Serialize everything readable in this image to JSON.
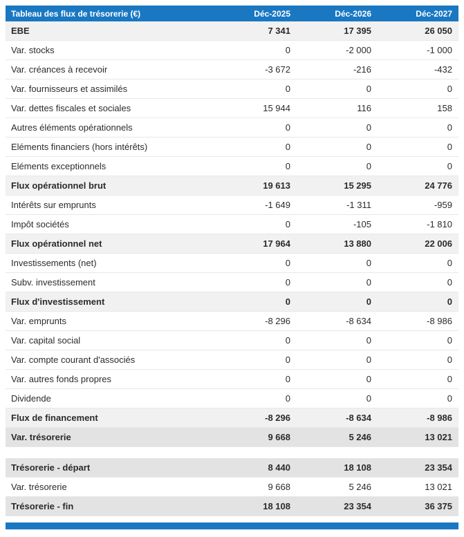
{
  "chart_data": {
    "type": "table",
    "title": "Tableau des flux de trésorerie (€)",
    "columns": [
      "Déc-2025",
      "Déc-2026",
      "Déc-2027"
    ],
    "rows": [
      {
        "label": "EBE",
        "values": [
          "7 341",
          "17 395",
          "26 050"
        ],
        "style": "subtotal"
      },
      {
        "label": "Var. stocks",
        "values": [
          "0",
          "-2 000",
          "-1 000"
        ],
        "style": "normal"
      },
      {
        "label": "Var. créances à recevoir",
        "values": [
          "-3 672",
          "-216",
          "-432"
        ],
        "style": "normal"
      },
      {
        "label": "Var. fournisseurs et assimilés",
        "values": [
          "0",
          "0",
          "0"
        ],
        "style": "normal"
      },
      {
        "label": "Var. dettes fiscales et sociales",
        "values": [
          "15 944",
          "116",
          "158"
        ],
        "style": "normal"
      },
      {
        "label": "Autres éléments opérationnels",
        "values": [
          "0",
          "0",
          "0"
        ],
        "style": "normal"
      },
      {
        "label": "Eléments financiers (hors intérêts)",
        "values": [
          "0",
          "0",
          "0"
        ],
        "style": "normal"
      },
      {
        "label": "Eléments exceptionnels",
        "values": [
          "0",
          "0",
          "0"
        ],
        "style": "normal"
      },
      {
        "label": "Flux opérationnel brut",
        "values": [
          "19 613",
          "15 295",
          "24 776"
        ],
        "style": "subtotal"
      },
      {
        "label": "Intérêts sur emprunts",
        "values": [
          "-1 649",
          "-1 311",
          "-959"
        ],
        "style": "normal"
      },
      {
        "label": "Impôt sociétés",
        "values": [
          "0",
          "-105",
          "-1 810"
        ],
        "style": "normal"
      },
      {
        "label": "Flux opérationnel net",
        "values": [
          "17 964",
          "13 880",
          "22 006"
        ],
        "style": "subtotal"
      },
      {
        "label": "Investissements (net)",
        "values": [
          "0",
          "0",
          "0"
        ],
        "style": "normal"
      },
      {
        "label": "Subv. investissement",
        "values": [
          "0",
          "0",
          "0"
        ],
        "style": "normal"
      },
      {
        "label": "Flux d'investissement",
        "values": [
          "0",
          "0",
          "0"
        ],
        "style": "subtotal"
      },
      {
        "label": "Var. emprunts",
        "values": [
          "-8 296",
          "-8 634",
          "-8 986"
        ],
        "style": "normal"
      },
      {
        "label": "Var. capital social",
        "values": [
          "0",
          "0",
          "0"
        ],
        "style": "normal"
      },
      {
        "label": "Var. compte courant d'associés",
        "values": [
          "0",
          "0",
          "0"
        ],
        "style": "normal"
      },
      {
        "label": "Var. autres fonds propres",
        "values": [
          "0",
          "0",
          "0"
        ],
        "style": "normal"
      },
      {
        "label": "Dividende",
        "values": [
          "0",
          "0",
          "0"
        ],
        "style": "normal"
      },
      {
        "label": "Flux de financement",
        "values": [
          "-8 296",
          "-8 634",
          "-8 986"
        ],
        "style": "subtotal"
      },
      {
        "label": "Var. trésorerie",
        "values": [
          "9 668",
          "5 246",
          "13 021"
        ],
        "style": "total"
      },
      {
        "style": "spacer"
      },
      {
        "label": "Trésorerie - départ",
        "values": [
          "8 440",
          "18 108",
          "23 354"
        ],
        "style": "total"
      },
      {
        "label": "Var. trésorerie",
        "values": [
          "9 668",
          "5 246",
          "13 021"
        ],
        "style": "normal"
      },
      {
        "label": "Trésorerie - fin",
        "values": [
          "18 108",
          "23 354",
          "36 375"
        ],
        "style": "total"
      }
    ]
  },
  "colors": {
    "accent": "#1a78c2",
    "subtotal_bg": "#f1f1f1",
    "total_bg": "#e3e3e3",
    "row_border": "#e8e8e8"
  }
}
